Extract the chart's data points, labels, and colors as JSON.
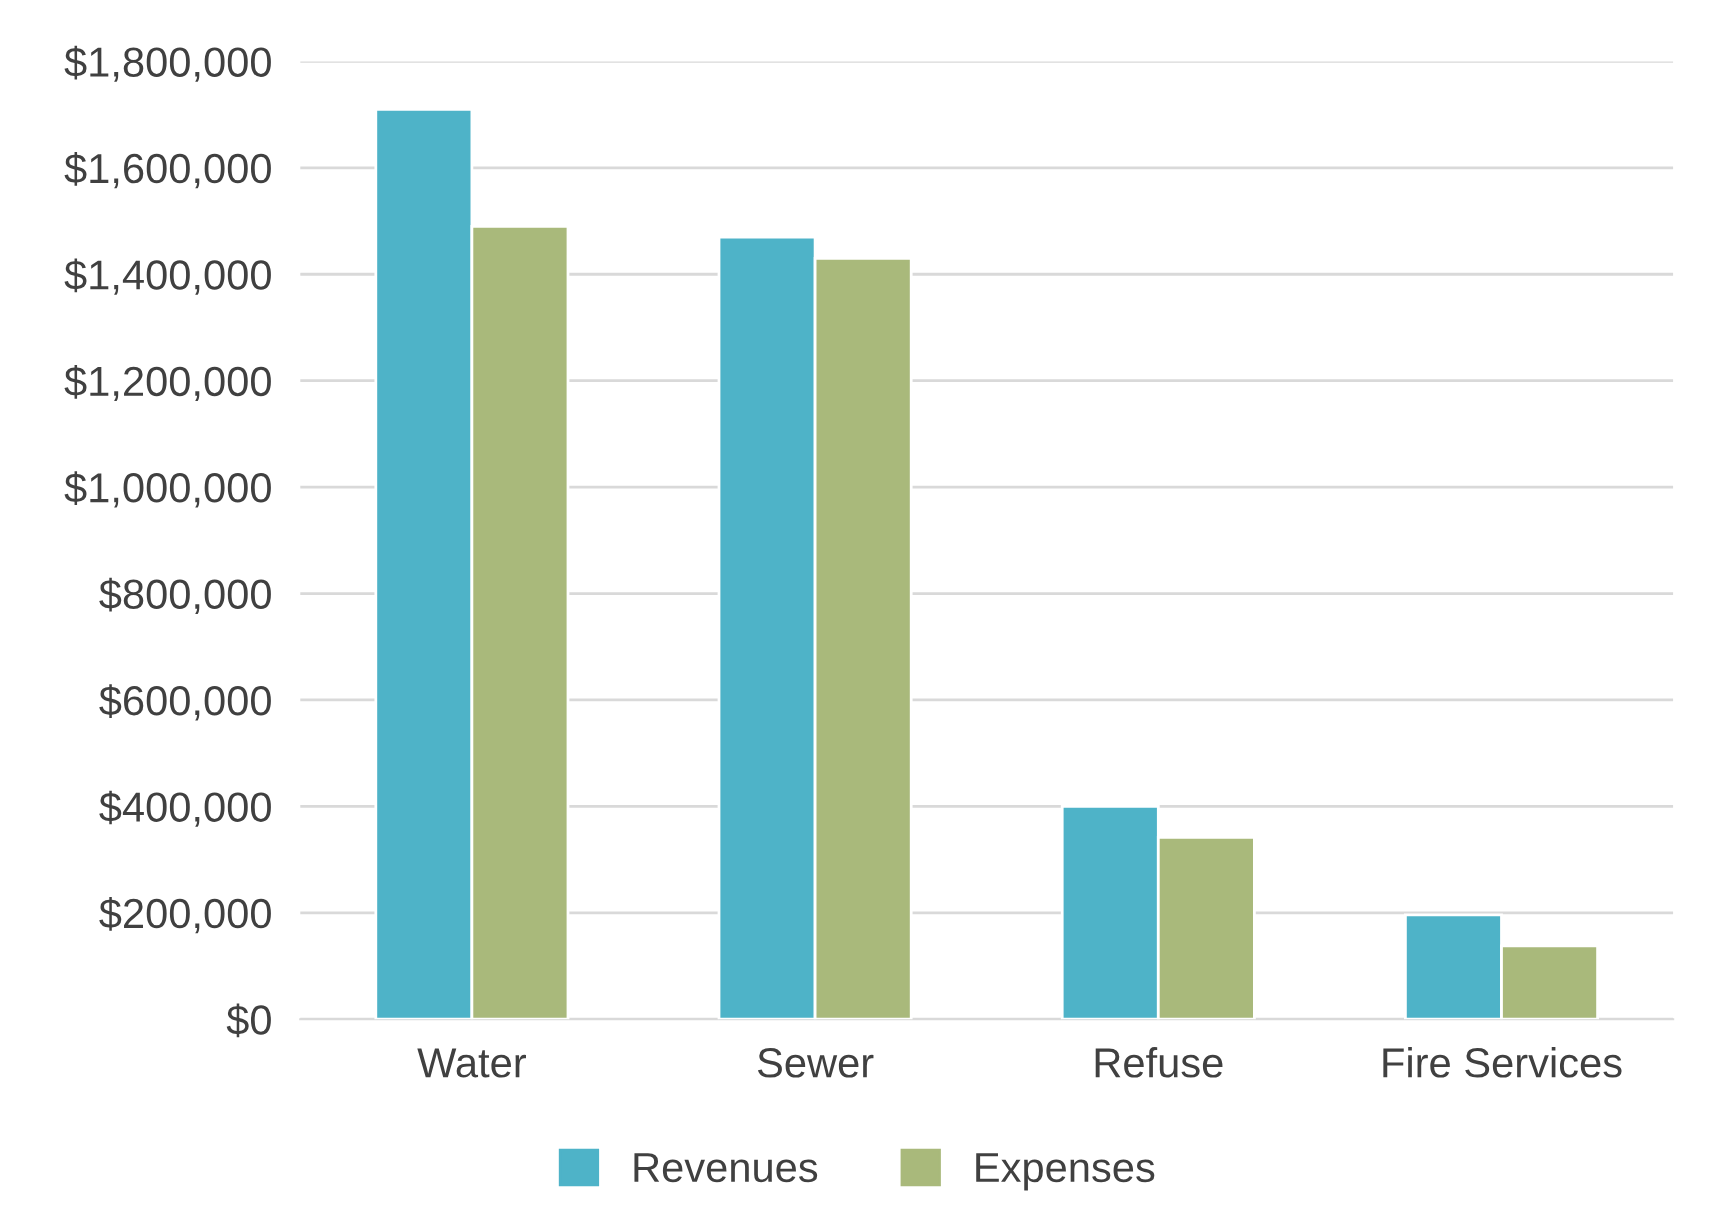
{
  "chart_data": {
    "type": "bar",
    "categories": [
      "Water",
      "Sewer",
      "Refuse",
      "Fire Services"
    ],
    "series": [
      {
        "name": "Revenues",
        "color": "#4eb3c8",
        "values": [
          1710000,
          1470000,
          400000,
          196000
        ]
      },
      {
        "name": "Expenses",
        "color": "#a9b97b",
        "values": [
          1490000,
          1430000,
          342000,
          138000
        ]
      }
    ],
    "ylim": [
      0,
      1800000
    ],
    "yticks": [
      {
        "value": 0,
        "label": "$0"
      },
      {
        "value": 200000,
        "label": "$200,000"
      },
      {
        "value": 400000,
        "label": "$400,000"
      },
      {
        "value": 600000,
        "label": "$600,000"
      },
      {
        "value": 800000,
        "label": "$800,000"
      },
      {
        "value": 1000000,
        "label": "$1,000,000"
      },
      {
        "value": 1200000,
        "label": "$1,200,000"
      },
      {
        "value": 1400000,
        "label": "$1,400,000"
      },
      {
        "value": 1600000,
        "label": "$1,600,000"
      },
      {
        "value": 1800000,
        "label": "$1,800,000"
      }
    ],
    "grid": "y",
    "legend": "bottom"
  }
}
